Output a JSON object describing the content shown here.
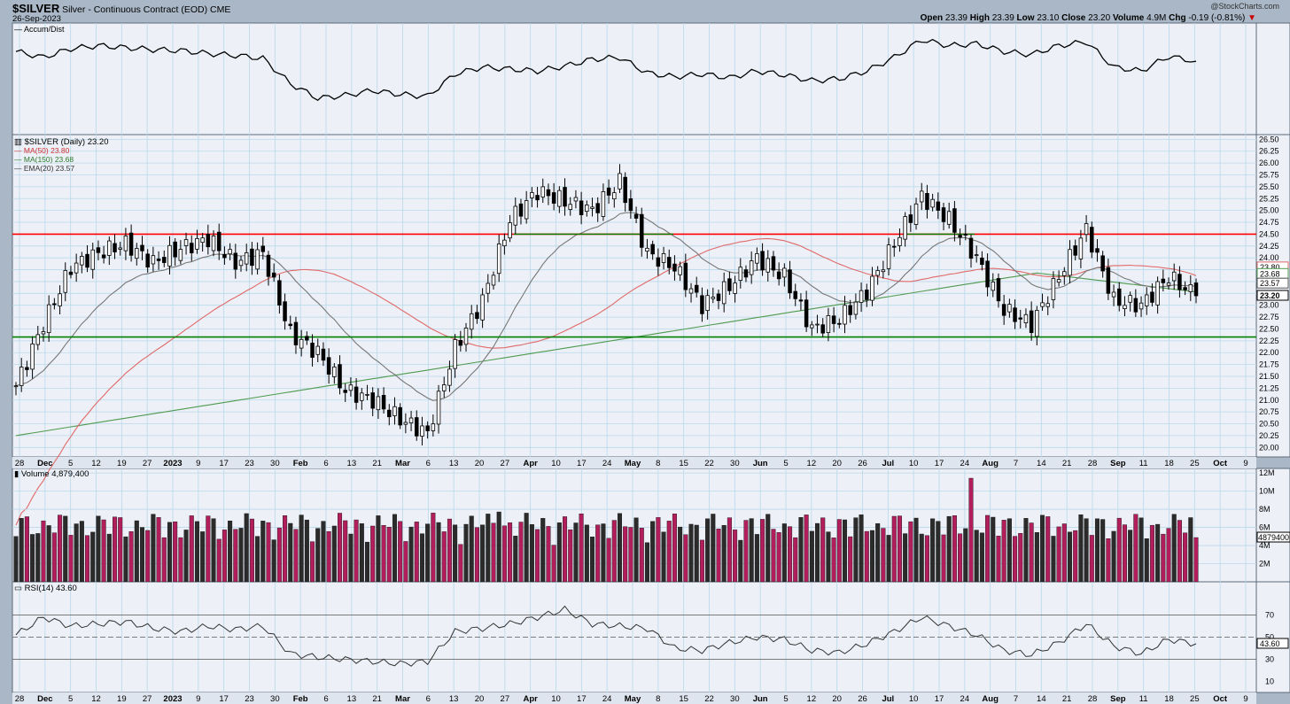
{
  "header": {
    "symbol": "$SILVER",
    "description": "Silver - Continuous Contract (EOD)",
    "exchange": "CME",
    "date": "26-Sep-2023",
    "watermark": "@StockCharts.com",
    "open_label": "Open",
    "open": "23.39",
    "high_label": "High",
    "high": "23.39",
    "low_label": "Low",
    "low": "23.10",
    "close_label": "Close",
    "close": "23.20",
    "volume_label": "Volume",
    "volume": "4.9M",
    "chg_label": "Chg",
    "chg": "-0.19 (-0.81%)",
    "chg_arrow": "▼"
  },
  "colors": {
    "panel_bg": "#edf0f7",
    "frame_bg": "#a9b7c6",
    "grid": "#b9d9ea",
    "up_volume": "#2b2b2b",
    "down_volume": "#b21e5b",
    "resistance": "#ff0000",
    "support": "#008000",
    "ma50": "#e06a6a",
    "ma150": "#4f9a4f",
    "ema20": "#777777"
  },
  "legends": {
    "accum": "Accum/Dist",
    "price": "$SILVER (Daily) 23.20",
    "ma50": "MA(50) 23.80",
    "ma150": "MA(150) 23.68",
    "ema20": "EMA(20) 23.57",
    "volume": "Volume 4,879,400",
    "rsi": "RSI(14) 43.60"
  },
  "axis_tags": {
    "ma50": "23.80",
    "ma150": "23.68",
    "ema20": "23.57",
    "close": "23.20",
    "volume": "4879400",
    "rsi": "43.60"
  },
  "chart_data": [
    {
      "type": "line",
      "panel": "Accum/Dist",
      "x": [
        "Nov 28",
        "Dec 5",
        "Dec 12",
        "Dec 19",
        "Dec 27",
        "Jan 3",
        "Jan 9",
        "Jan 17",
        "Jan 23",
        "Jan 30",
        "Feb 6",
        "Feb 13",
        "Feb 21",
        "Feb 28",
        "Mar 6",
        "Mar 13",
        "Mar 20",
        "Mar 27",
        "Apr 3",
        "Apr 10",
        "Apr 17",
        "Apr 24",
        "May 1",
        "May 8",
        "May 15",
        "May 22",
        "May 30",
        "Jun 5",
        "Jun 12",
        "Jun 20",
        "Jun 26",
        "Jul 3",
        "Jul 10",
        "Jul 17",
        "Jul 24",
        "Jul 31",
        "Aug 7",
        "Aug 14",
        "Aug 21",
        "Aug 28",
        "Sep 5",
        "Sep 11",
        "Sep 18",
        "Sep 26"
      ],
      "values": [
        78,
        72,
        81,
        84,
        82,
        80,
        79,
        76,
        74,
        71,
        45,
        30,
        33,
        38,
        34,
        32,
        55,
        62,
        60,
        58,
        63,
        70,
        72,
        56,
        52,
        55,
        51,
        58,
        54,
        48,
        50,
        58,
        72,
        90,
        84,
        86,
        78,
        75,
        84,
        88,
        62,
        58,
        73,
        68
      ],
      "ylim": [
        0,
        100
      ]
    },
    {
      "type": "candlestick",
      "panel": "price",
      "ylim": [
        19.8,
        26.6
      ],
      "yticks": [
        "20.00",
        "20.25",
        "20.50",
        "20.75",
        "21.00",
        "21.25",
        "21.50",
        "21.75",
        "22.00",
        "22.25",
        "22.50",
        "22.75",
        "23.00",
        "23.25",
        "23.50",
        "23.75",
        "24.00",
        "24.25",
        "24.50",
        "24.75",
        "25.00",
        "25.25",
        "25.50",
        "25.75",
        "26.00",
        "26.25",
        "26.50"
      ],
      "weekly_closes": [
        21.3,
        22.6,
        23.8,
        24.1,
        24.3,
        23.9,
        24.2,
        24.4,
        23.9,
        24.1,
        22.4,
        22.0,
        21.2,
        21.0,
        20.6,
        20.3,
        22.1,
        23.1,
        24.8,
        25.4,
        25.2,
        25.0,
        25.6,
        24.1,
        23.8,
        23.0,
        23.4,
        24.0,
        23.6,
        22.5,
        22.7,
        23.3,
        24.3,
        25.3,
        24.8,
        24.0,
        22.9,
        22.6,
        23.6,
        24.6,
        23.1,
        23.0,
        23.6,
        23.2
      ],
      "resistance": 24.5,
      "support": 22.33,
      "ma50_last": 23.8,
      "ma150_last": 23.68,
      "ema20_last": 23.57
    },
    {
      "type": "bar",
      "panel": "Volume",
      "yticks": [
        "2M",
        "4M",
        "6M",
        "8M",
        "10M",
        "12M"
      ],
      "ylim": [
        0,
        12.5
      ],
      "last": 4.8794
    },
    {
      "type": "line",
      "panel": "RSI(14)",
      "yticks": [
        "10",
        "30",
        "50",
        "70"
      ],
      "ylim": [
        0,
        100
      ],
      "levels": [
        30,
        50,
        70
      ],
      "x": [
        "Nov 28",
        "Dec 5",
        "Dec 12",
        "Dec 19",
        "Dec 27",
        "Jan 3",
        "Jan 9",
        "Jan 17",
        "Jan 23",
        "Jan 30",
        "Feb 6",
        "Feb 13",
        "Feb 21",
        "Feb 28",
        "Mar 6",
        "Mar 13",
        "Mar 20",
        "Mar 27",
        "Apr 3",
        "Apr 10",
        "Apr 17",
        "Apr 24",
        "May 1",
        "May 8",
        "May 15",
        "May 22",
        "May 30",
        "Jun 5",
        "Jun 12",
        "Jun 20",
        "Jun 26",
        "Jul 3",
        "Jul 10",
        "Jul 17",
        "Jul 24",
        "Jul 31",
        "Aug 7",
        "Aug 14",
        "Aug 21",
        "Aug 28",
        "Sep 5",
        "Sep 11",
        "Sep 18",
        "Sep 26"
      ],
      "values": [
        52,
        68,
        60,
        62,
        64,
        58,
        55,
        60,
        57,
        60,
        35,
        32,
        30,
        28,
        26,
        28,
        55,
        58,
        62,
        68,
        75,
        62,
        60,
        58,
        40,
        38,
        45,
        50,
        48,
        38,
        36,
        44,
        55,
        68,
        60,
        52,
        38,
        34,
        45,
        62,
        42,
        35,
        48,
        44
      ]
    }
  ],
  "x_axis": [
    "28",
    "Dec",
    "5",
    "12",
    "19",
    "27",
    "2023",
    "9",
    "17",
    "23",
    "30",
    "Feb",
    "6",
    "13",
    "21",
    "Mar",
    "6",
    "13",
    "20",
    "27",
    "Apr",
    "10",
    "17",
    "24",
    "May",
    "8",
    "15",
    "22",
    "30",
    "Jun",
    "5",
    "12",
    "20",
    "26",
    "Jul",
    "10",
    "17",
    "24",
    "Aug",
    "7",
    "14",
    "21",
    "28",
    "Sep",
    "11",
    "18",
    "25",
    "Oct",
    "9"
  ]
}
